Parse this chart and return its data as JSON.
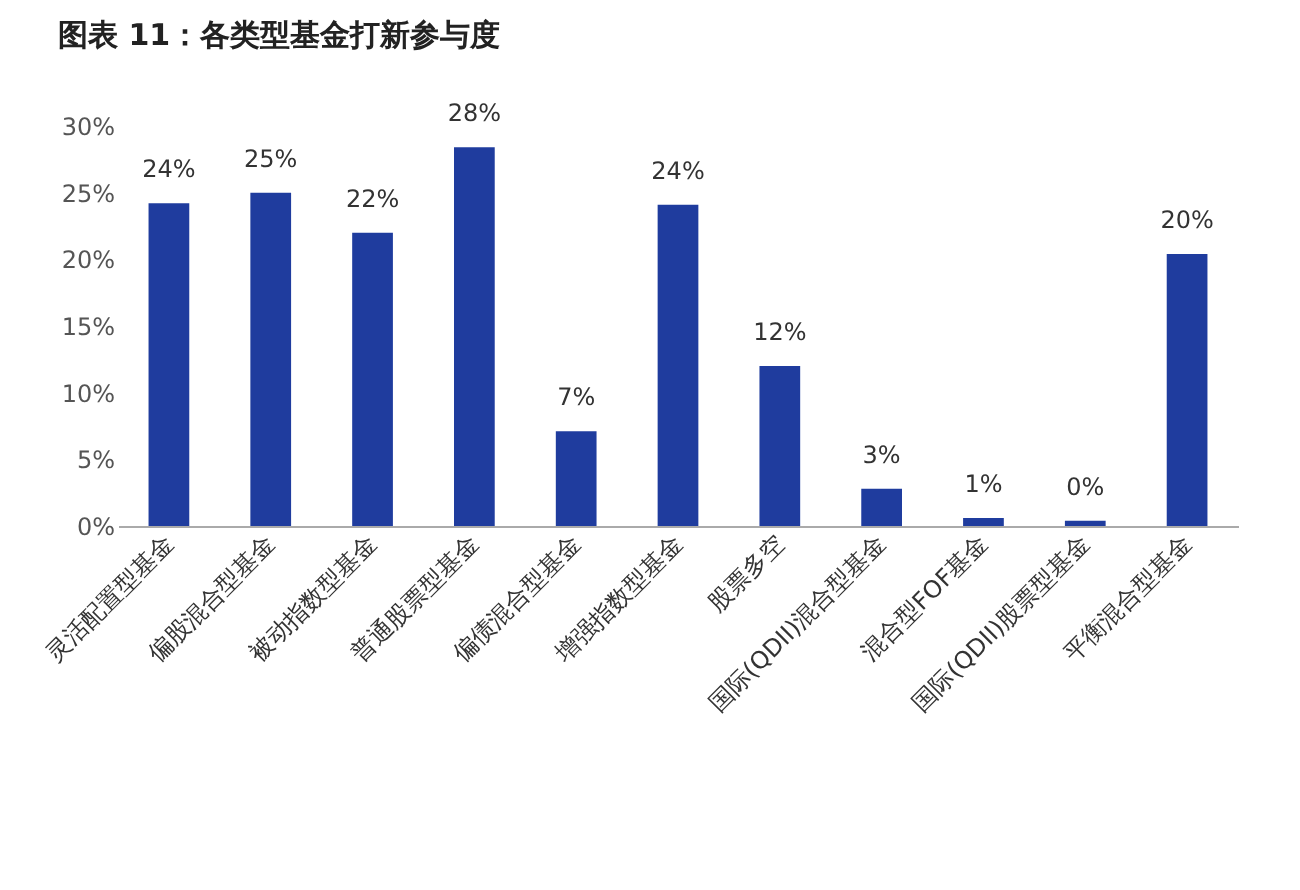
{
  "chart_data": {
    "type": "bar",
    "title": "图表 11：各类型基金打新参与度",
    "categories": [
      "灵活配置型基金",
      "偏股混合型基金",
      "被动指数型基金",
      "普通股票型基金",
      "偏债混合型基金",
      "增强指数型基金",
      "股票多空",
      "国际(QDII)混合型基金",
      "混合型FOF基金",
      "国际(QDII)股票型基金",
      "平衡混合型基金"
    ],
    "values": [
      24.2,
      25.0,
      22.0,
      28.4,
      7.1,
      24.1,
      12.0,
      2.8,
      0.6,
      0.4,
      20.4
    ],
    "value_labels": [
      "24%",
      "25%",
      "22%",
      "28%",
      "7%",
      "24%",
      "12%",
      "3%",
      "1%",
      "0%",
      "20%"
    ],
    "color": "#1f3c9e",
    "ylim": [
      0,
      30
    ],
    "yticks": [
      {
        "value": 0,
        "label": "0%"
      },
      {
        "value": 5,
        "label": "5%"
      },
      {
        "value": 10,
        "label": "10%"
      },
      {
        "value": 15,
        "label": "15%"
      },
      {
        "value": 20,
        "label": "20%"
      },
      {
        "value": 25,
        "label": "25%"
      },
      {
        "value": 30,
        "label": "30%"
      }
    ],
    "grid": false
  }
}
